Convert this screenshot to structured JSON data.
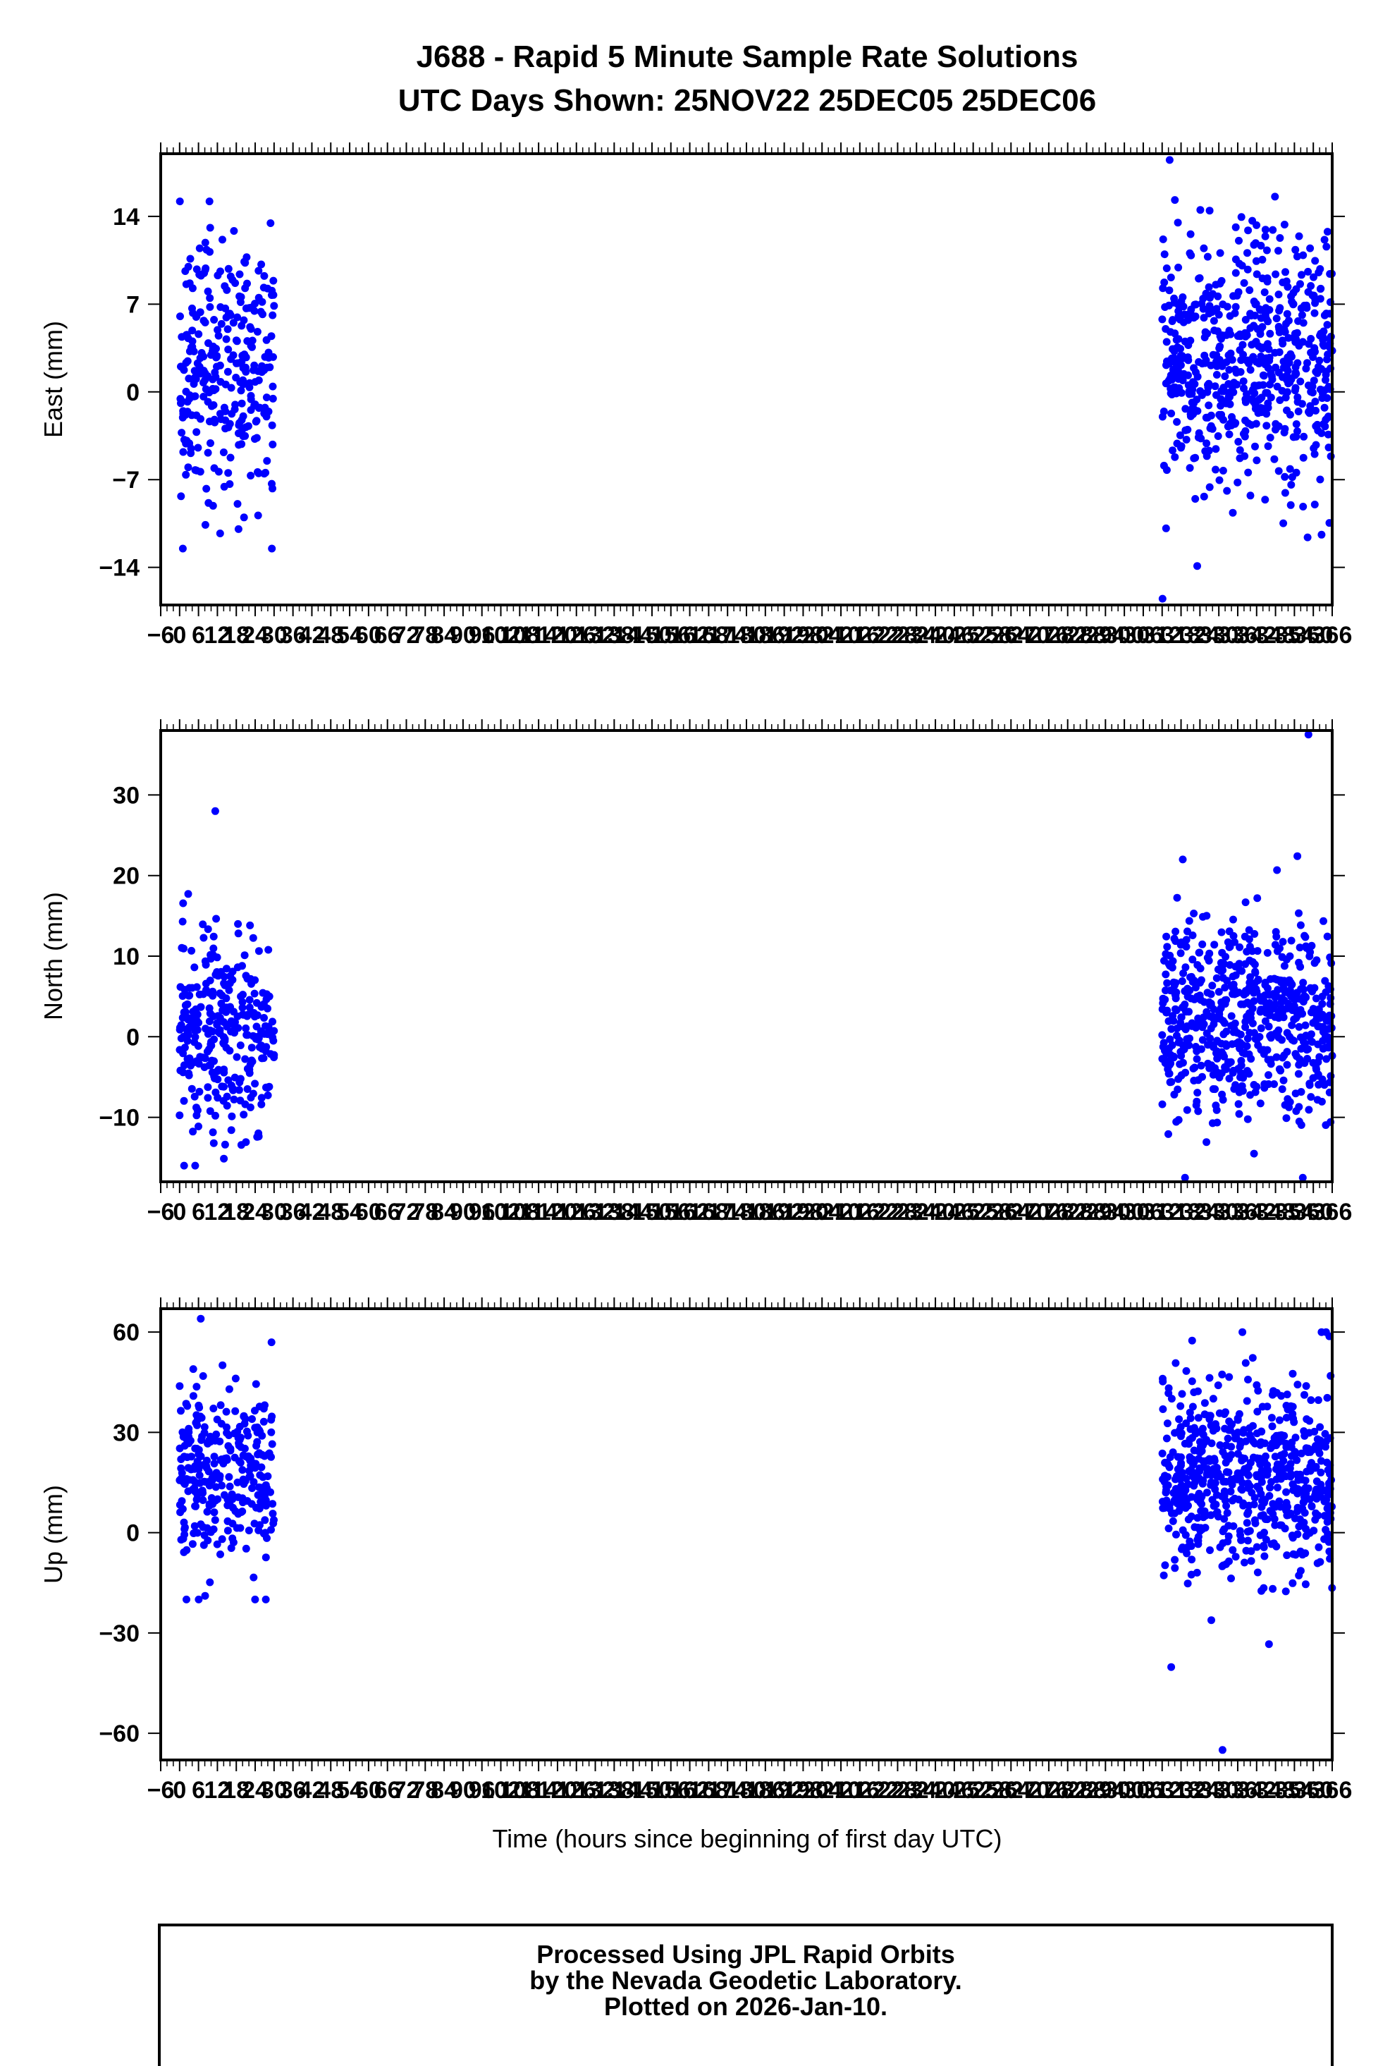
{
  "title": {
    "line1": "J688 - Rapid 5 Minute Sample Rate Solutions",
    "line2": "UTC Days Shown:  25NOV22 25DEC05 25DEC06"
  },
  "x_axis": {
    "label": "Time (hours since beginning of first day UTC)",
    "tick_values": [
      -6,
      0,
      6,
      12,
      18,
      24,
      30,
      36,
      42,
      48,
      54,
      60,
      66,
      72,
      78,
      84,
      90,
      96,
      102,
      108,
      114,
      120,
      126,
      132,
      138,
      144,
      150,
      156,
      162,
      168,
      174,
      180,
      186,
      192,
      198,
      204,
      210,
      216,
      222,
      228,
      234,
      240,
      246,
      252,
      258,
      264,
      270,
      276,
      282,
      288,
      294,
      300,
      306,
      312,
      318,
      324,
      330,
      336,
      342,
      348,
      354,
      360,
      366
    ],
    "tick_labels": [
      "−6",
      "0",
      "6",
      "12",
      "18",
      "24",
      "30",
      "36",
      "42",
      "48",
      "54",
      "60",
      "66",
      "72",
      "78",
      "84",
      "90",
      "96",
      "102",
      "108",
      "114",
      "120",
      "126",
      "132",
      "138",
      "144",
      "150",
      "156",
      "162",
      "168",
      "174",
      "180",
      "186",
      "192",
      "198",
      "204",
      "210",
      "216",
      "222",
      "228",
      "234",
      "240",
      "246",
      "252",
      "258",
      "264",
      "270",
      "276",
      "282",
      "288",
      "294",
      "300",
      "306",
      "312",
      "318",
      "324",
      "330",
      "336",
      "342",
      "348",
      "354",
      "360",
      "366"
    ]
  },
  "colors": {
    "points": "#0000ff",
    "axis": "#000000",
    "background": "#ffffff"
  },
  "chart_data": [
    {
      "type": "scatter",
      "ylabel": "East (mm)",
      "xlim": [
        -6,
        366
      ],
      "ylim": [
        -17,
        19
      ],
      "yticks": [
        -14,
        -7,
        0,
        7,
        14
      ],
      "ytick_labels": [
        "−14",
        "−7",
        "0",
        "7",
        "14"
      ],
      "grid": false,
      "clusters": [
        {
          "x_range": [
            0,
            30
          ],
          "y_center": 2,
          "y_spread": 5.5,
          "y_min": -12.5,
          "y_max": 15.2,
          "count": 300
        },
        {
          "x_range": [
            312,
            366
          ],
          "y_center": 2.5,
          "y_spread": 5,
          "y_min": -16.5,
          "y_max": 18.5,
          "count": 620
        }
      ]
    },
    {
      "type": "scatter",
      "ylabel": "North (mm)",
      "xlim": [
        -6,
        366
      ],
      "ylim": [
        -18,
        38
      ],
      "yticks": [
        -10,
        0,
        10,
        20,
        30
      ],
      "ytick_labels": [
        "−10",
        "0",
        "10",
        "20",
        "30"
      ],
      "grid": false,
      "clusters": [
        {
          "x_range": [
            0,
            30
          ],
          "y_center": 0.5,
          "y_spread": 6,
          "y_min": -16,
          "y_max": 28,
          "count": 300
        },
        {
          "x_range": [
            312,
            366
          ],
          "y_center": 2,
          "y_spread": 6,
          "y_min": -17.5,
          "y_max": 37.5,
          "count": 620
        }
      ]
    },
    {
      "type": "scatter",
      "ylabel": "Up (mm)",
      "xlim": [
        -6,
        366
      ],
      "ylim": [
        -68,
        67
      ],
      "yticks": [
        -60,
        -30,
        0,
        30,
        60
      ],
      "ytick_labels": [
        "−60",
        "−30",
        "0",
        "30",
        "60"
      ],
      "grid": false,
      "clusters": [
        {
          "x_range": [
            0,
            30
          ],
          "y_center": 17,
          "y_spread": 14,
          "y_min": -20,
          "y_max": 64,
          "count": 300
        },
        {
          "x_range": [
            312,
            366
          ],
          "y_center": 15,
          "y_spread": 15,
          "y_min": -65,
          "y_max": 60,
          "count": 620
        }
      ]
    }
  ],
  "footer": {
    "line1": "Processed Using JPL Rapid Orbits",
    "line2": "by the Nevada Geodetic Laboratory.",
    "line3": "Plotted on 2026-Jan-10."
  }
}
